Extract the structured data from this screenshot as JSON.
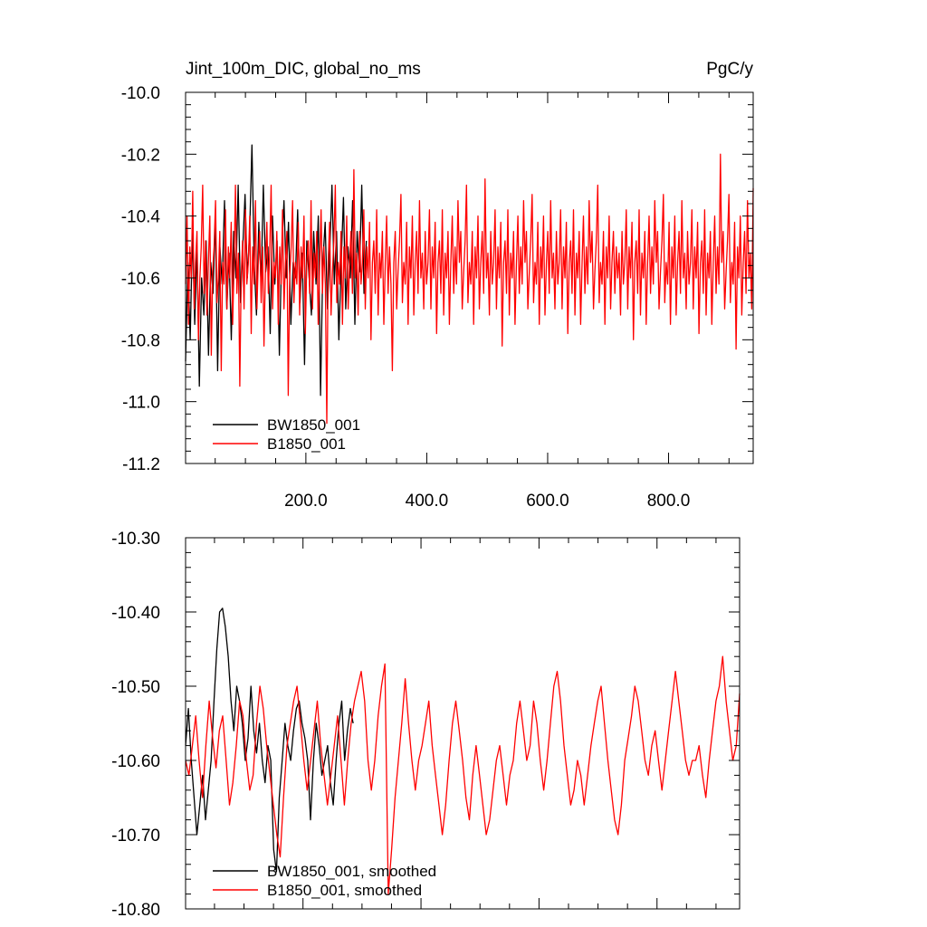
{
  "chart_data": [
    {
      "type": "line",
      "title_left": "Jint_100m_DIC, global_no_ms",
      "title_right": "PgC/y",
      "ylim": [
        -11.2,
        -10.0
      ],
      "xlim": [
        1,
        940
      ],
      "yticks": [
        -10.0,
        -10.2,
        -10.4,
        -10.6,
        -10.8,
        -11.0,
        -11.2
      ],
      "ytick_labels": [
        "-10.0",
        "-10.2",
        "-10.4",
        "-10.6",
        "-10.8",
        "-11.0",
        "-11.2"
      ],
      "xticks": [
        200,
        400,
        600,
        800
      ],
      "xtick_labels": [
        "200.0",
        "400.0",
        "600.0",
        "800.0"
      ],
      "grid": false,
      "legend_position": "bottom-left",
      "series": [
        {
          "name": "BW1850_001",
          "color": "#000000",
          "x_start": 1,
          "x_end": 300,
          "values": [
            -10.87,
            -10.55,
            -10.8,
            -10.45,
            -10.75,
            -10.5,
            -10.95,
            -10.6,
            -10.72,
            -10.48,
            -10.85,
            -10.55,
            -10.65,
            -10.4,
            -10.9,
            -10.5,
            -10.62,
            -10.35,
            -10.7,
            -10.52,
            -10.8,
            -10.45,
            -10.6,
            -10.3,
            -10.68,
            -10.5,
            -10.33,
            -10.6,
            -10.45,
            -10.17,
            -10.55,
            -10.72,
            -10.42,
            -10.62,
            -10.3,
            -10.58,
            -10.5,
            -10.78,
            -10.4,
            -10.62,
            -10.48,
            -10.85,
            -10.52,
            -10.35,
            -10.6,
            -10.42,
            -10.75,
            -10.55,
            -10.6,
            -10.38,
            -10.68,
            -10.52,
            -10.88,
            -10.48,
            -10.6,
            -10.72,
            -10.45,
            -10.62,
            -10.4,
            -10.98,
            -10.55,
            -10.42,
            -10.7,
            -10.52,
            -10.3,
            -10.62,
            -10.45,
            -10.8,
            -10.55,
            -10.34,
            -10.7,
            -10.5,
            -10.6,
            -10.35,
            -10.75,
            -10.45,
            -10.58,
            -10.3,
            -10.65,
            -10.48
          ]
        },
        {
          "name": "B1850_001",
          "color": "#ff0000",
          "x_start": 1,
          "x_end": 940,
          "values": [
            -10.62,
            -10.4,
            -10.75,
            -10.5,
            -10.6,
            -10.32,
            -10.7,
            -10.55,
            -10.45,
            -10.8,
            -10.6,
            -10.5,
            -10.3,
            -10.65,
            -10.48,
            -10.72,
            -10.55,
            -10.4,
            -10.85,
            -10.58,
            -10.5,
            -10.35,
            -10.68,
            -10.6,
            -10.45,
            -10.9,
            -10.55,
            -10.62,
            -10.38,
            -10.7,
            -10.5,
            -10.6,
            -10.42,
            -10.75,
            -10.55,
            -10.3,
            -10.65,
            -10.52,
            -10.95,
            -10.6,
            -10.48,
            -10.7,
            -10.38,
            -10.62,
            -10.55,
            -10.4,
            -10.78,
            -10.5,
            -10.62,
            -10.35,
            -10.7,
            -10.55,
            -10.45,
            -10.68,
            -10.5,
            -10.82,
            -10.58,
            -10.42,
            -10.65,
            -10.52,
            -10.3,
            -10.7,
            -10.55,
            -10.6,
            -10.45,
            -10.75,
            -10.5,
            -10.62,
            -10.38,
            -10.7,
            -10.55,
            -10.45,
            -10.98,
            -10.6,
            -10.5,
            -10.35,
            -10.68,
            -10.55,
            -10.62,
            -10.42,
            -10.72,
            -10.5,
            -10.6,
            -10.4,
            -10.78,
            -10.55,
            -10.48,
            -10.65,
            -10.35,
            -10.7,
            -10.52,
            -10.6,
            -10.45,
            -10.75,
            -10.55,
            -10.38,
            -10.65,
            -10.5,
            -10.62,
            -11.07,
            -10.55,
            -10.42,
            -10.72,
            -10.58,
            -10.48,
            -10.3,
            -10.68,
            -10.55,
            -10.62,
            -10.45,
            -10.75,
            -10.5,
            -10.6,
            -10.4,
            -10.7,
            -10.55,
            -10.45,
            -10.65,
            -10.25,
            -10.6,
            -10.52,
            -10.72,
            -10.45,
            -10.62,
            -10.55,
            -10.38,
            -10.7,
            -10.5,
            -10.6,
            -10.42,
            -10.8,
            -10.55,
            -10.48,
            -10.65,
            -10.38,
            -10.72,
            -10.52,
            -10.6,
            -10.45,
            -10.75,
            -10.55,
            -10.4,
            -10.65,
            -10.5,
            -10.62,
            -10.9,
            -10.55,
            -10.45,
            -10.7,
            -10.58,
            -10.48,
            -10.33,
            -10.68,
            -10.55,
            -10.62,
            -10.42,
            -10.75,
            -10.5,
            -10.6,
            -10.4,
            -10.72,
            -10.55,
            -10.45,
            -10.65,
            -10.35,
            -10.6,
            -10.52,
            -10.7,
            -10.45,
            -10.62,
            -10.55,
            -10.38,
            -10.7,
            -10.5,
            -10.6,
            -10.42,
            -10.78,
            -10.55,
            -10.48,
            -10.65,
            -10.38,
            -10.72,
            -10.52,
            -10.6,
            -10.45,
            -10.75,
            -10.55,
            -10.4,
            -10.65,
            -10.5,
            -10.62,
            -10.35,
            -10.55,
            -10.45,
            -10.7,
            -10.58,
            -10.48,
            -10.3,
            -10.68,
            -10.55,
            -10.62,
            -10.45,
            -10.75,
            -10.5,
            -10.6,
            -10.4,
            -10.7,
            -10.55,
            -10.45,
            -10.65,
            -10.28,
            -10.6,
            -10.52,
            -10.72,
            -10.45,
            -10.62,
            -10.55,
            -10.38,
            -10.7,
            -10.5,
            -10.6,
            -10.42,
            -10.82,
            -10.55,
            -10.48,
            -10.65,
            -10.38,
            -10.72,
            -10.52,
            -10.6,
            -10.45,
            -10.75,
            -10.55,
            -10.4,
            -10.65,
            -10.5,
            -10.62,
            -10.35,
            -10.55,
            -10.45,
            -10.7,
            -10.58,
            -10.48,
            -10.33,
            -10.68,
            -10.55,
            -10.62,
            -10.42,
            -10.75,
            -10.5,
            -10.6,
            -10.4,
            -10.72,
            -10.55,
            -10.45,
            -10.65,
            -10.35,
            -10.6,
            -10.52,
            -10.7,
            -10.45,
            -10.62,
            -10.55,
            -10.38,
            -10.7,
            -10.5,
            -10.6,
            -10.42,
            -10.78,
            -10.55,
            -10.48,
            -10.65,
            -10.38,
            -10.72,
            -10.52,
            -10.6,
            -10.45,
            -10.75,
            -10.55,
            -10.4,
            -10.65,
            -10.5,
            -10.62,
            -10.35,
            -10.55,
            -10.45,
            -10.7,
            -10.58,
            -10.48,
            -10.3,
            -10.68,
            -10.55,
            -10.62,
            -10.45,
            -10.75,
            -10.5,
            -10.6,
            -10.4,
            -10.7,
            -10.55,
            -10.45,
            -10.65,
            -10.5,
            -10.6,
            -10.52,
            -10.72,
            -10.45,
            -10.62,
            -10.55,
            -10.38,
            -10.7,
            -10.5,
            -10.6,
            -10.42,
            -10.8,
            -10.55,
            -10.48,
            -10.65,
            -10.38,
            -10.72,
            -10.52,
            -10.6,
            -10.45,
            -10.75,
            -10.55,
            -10.4,
            -10.65,
            -10.5,
            -10.62,
            -10.35,
            -10.55,
            -10.45,
            -10.7,
            -10.58,
            -10.48,
            -10.33,
            -10.68,
            -10.55,
            -10.62,
            -10.42,
            -10.75,
            -10.5,
            -10.6,
            -10.4,
            -10.72,
            -10.55,
            -10.45,
            -10.65,
            -10.35,
            -10.6,
            -10.52,
            -10.7,
            -10.45,
            -10.62,
            -10.55,
            -10.38,
            -10.7,
            -10.5,
            -10.6,
            -10.42,
            -10.78,
            -10.55,
            -10.48,
            -10.65,
            -10.38,
            -10.72,
            -10.52,
            -10.6,
            -10.45,
            -10.75,
            -10.55,
            -10.4,
            -10.65,
            -10.5,
            -10.62,
            -10.2,
            -10.55,
            -10.45,
            -10.7,
            -10.58,
            -10.48,
            -10.33,
            -10.68,
            -10.55,
            -10.62,
            -10.42,
            -10.83,
            -10.5,
            -10.6,
            -10.4,
            -10.72,
            -10.55,
            -10.45,
            -10.65,
            -10.35,
            -10.6,
            -10.52,
            -10.7,
            -10.31
          ]
        }
      ]
    },
    {
      "type": "line",
      "ylim": [
        -10.8,
        -10.3
      ],
      "xlim": [
        1,
        940
      ],
      "yticks": [
        -10.3,
        -10.4,
        -10.5,
        -10.6,
        -10.7,
        -10.8
      ],
      "ytick_labels": [
        "-10.30",
        "-10.40",
        "-10.50",
        "-10.60",
        "-10.70",
        "-10.80"
      ],
      "grid": false,
      "legend_position": "bottom-left",
      "series": [
        {
          "name": "BW1850_001, smoothed",
          "color": "#000000",
          "x_start": 1,
          "x_end": 285,
          "values": [
            -10.58,
            -10.53,
            -10.6,
            -10.65,
            -10.7,
            -10.66,
            -10.62,
            -10.68,
            -10.64,
            -10.6,
            -10.52,
            -10.45,
            -10.4,
            -10.395,
            -10.42,
            -10.46,
            -10.52,
            -10.56,
            -10.5,
            -10.52,
            -10.55,
            -10.6,
            -10.57,
            -10.5,
            -10.56,
            -10.59,
            -10.55,
            -10.6,
            -10.63,
            -10.58,
            -10.6,
            -10.72,
            -10.75,
            -10.65,
            -10.6,
            -10.55,
            -10.58,
            -10.6,
            -10.56,
            -10.53,
            -10.52,
            -10.55,
            -10.57,
            -10.6,
            -10.68,
            -10.6,
            -10.55,
            -10.58,
            -10.62,
            -10.6,
            -10.58,
            -10.63,
            -10.66,
            -10.6,
            -10.55,
            -10.52,
            -10.6,
            -10.56,
            -10.53,
            -10.55
          ]
        },
        {
          "name": "B1850_001, smoothed",
          "color": "#ff0000",
          "x_start": 1,
          "x_end": 940,
          "values": [
            -10.6,
            -10.62,
            -10.58,
            -10.54,
            -10.6,
            -10.65,
            -10.58,
            -10.52,
            -10.57,
            -10.61,
            -10.56,
            -10.54,
            -10.6,
            -10.66,
            -10.63,
            -10.58,
            -10.52,
            -10.54,
            -10.6,
            -10.64,
            -10.62,
            -10.55,
            -10.5,
            -10.53,
            -10.58,
            -10.62,
            -10.66,
            -10.7,
            -10.73,
            -10.65,
            -10.58,
            -10.55,
            -10.52,
            -10.5,
            -10.55,
            -10.6,
            -10.64,
            -10.6,
            -10.56,
            -10.52,
            -10.58,
            -10.62,
            -10.66,
            -10.62,
            -10.58,
            -10.54,
            -10.6,
            -10.66,
            -10.6,
            -10.55,
            -10.52,
            -10.5,
            -10.48,
            -10.52,
            -10.6,
            -10.64,
            -10.6,
            -10.54,
            -10.5,
            -10.47,
            -10.78,
            -10.72,
            -10.65,
            -10.6,
            -10.55,
            -10.49,
            -10.55,
            -10.6,
            -10.64,
            -10.6,
            -10.58,
            -10.55,
            -10.52,
            -10.58,
            -10.62,
            -10.66,
            -10.7,
            -10.66,
            -10.6,
            -10.55,
            -10.52,
            -10.56,
            -10.6,
            -10.65,
            -10.68,
            -10.62,
            -10.58,
            -10.62,
            -10.66,
            -10.7,
            -10.68,
            -10.64,
            -10.6,
            -10.58,
            -10.62,
            -10.66,
            -10.62,
            -10.6,
            -10.55,
            -10.52,
            -10.56,
            -10.6,
            -10.58,
            -10.52,
            -10.55,
            -10.6,
            -10.64,
            -10.6,
            -10.55,
            -10.5,
            -10.48,
            -10.52,
            -10.58,
            -10.62,
            -10.66,
            -10.64,
            -10.6,
            -10.62,
            -10.66,
            -10.62,
            -10.58,
            -10.55,
            -10.52,
            -10.5,
            -10.55,
            -10.6,
            -10.64,
            -10.68,
            -10.7,
            -10.66,
            -10.6,
            -10.57,
            -10.54,
            -10.5,
            -10.52,
            -10.56,
            -10.6,
            -10.62,
            -10.58,
            -10.56,
            -10.6,
            -10.64,
            -10.6,
            -10.56,
            -10.52,
            -10.48,
            -10.52,
            -10.56,
            -10.6,
            -10.62,
            -10.6,
            -10.6,
            -10.58,
            -10.62,
            -10.65,
            -10.6,
            -10.56,
            -10.52,
            -10.5,
            -10.46,
            -10.52,
            -10.56,
            -10.6,
            -10.58,
            -10.51
          ]
        }
      ]
    }
  ]
}
